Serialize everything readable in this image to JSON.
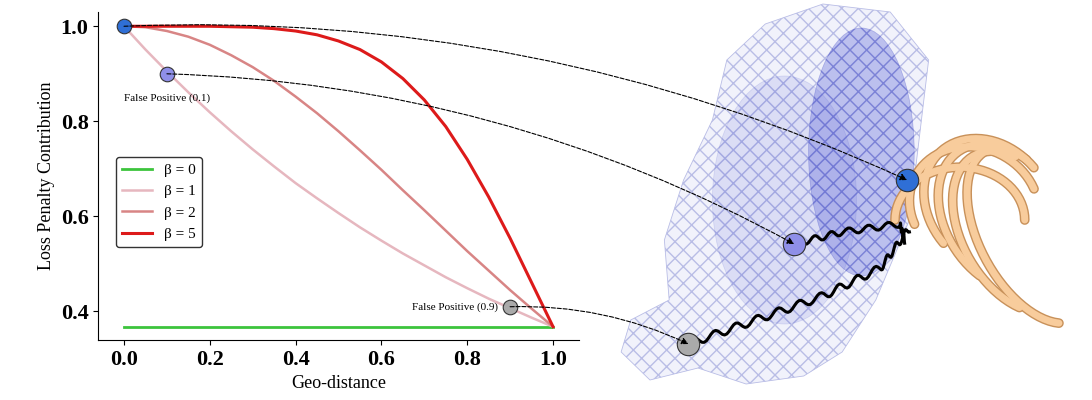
{
  "chart_data": {
    "type": "line",
    "x_label": "Geo-distance",
    "y_label": "Loss Penalty Contribution",
    "x": [
      0.0,
      0.05,
      0.1,
      0.15,
      0.2,
      0.25,
      0.3,
      0.35,
      0.4,
      0.45,
      0.5,
      0.55,
      0.6,
      0.65,
      0.7,
      0.75,
      0.8,
      0.85,
      0.9,
      0.95,
      1.0
    ],
    "series": [
      {
        "name": "β = 0",
        "color": "#3cc43c",
        "values": [
          0.368,
          0.368,
          0.368,
          0.368,
          0.368,
          0.368,
          0.368,
          0.368,
          0.368,
          0.368,
          0.368,
          0.368,
          0.368,
          0.368,
          0.368,
          0.368,
          0.368,
          0.368,
          0.368,
          0.368,
          0.368
        ]
      },
      {
        "name": "β = 1",
        "color": "#e6b7bf",
        "values": [
          1.0,
          0.951,
          0.905,
          0.861,
          0.819,
          0.779,
          0.741,
          0.705,
          0.67,
          0.638,
          0.607,
          0.577,
          0.549,
          0.522,
          0.497,
          0.472,
          0.449,
          0.427,
          0.407,
          0.387,
          0.368
        ]
      },
      {
        "name": "β = 2",
        "color": "#d88585",
        "values": [
          1.0,
          0.998,
          0.99,
          0.978,
          0.961,
          0.939,
          0.914,
          0.885,
          0.852,
          0.817,
          0.779,
          0.739,
          0.698,
          0.655,
          0.613,
          0.57,
          0.527,
          0.486,
          0.445,
          0.406,
          0.368
        ]
      },
      {
        "name": "β = 5",
        "color": "#dd1a1a",
        "values": [
          1.0,
          1.0,
          1.0,
          1.0,
          1.0,
          0.999,
          0.998,
          0.995,
          0.99,
          0.982,
          0.969,
          0.951,
          0.925,
          0.89,
          0.845,
          0.789,
          0.72,
          0.641,
          0.554,
          0.461,
          0.368
        ]
      }
    ],
    "xlim": [
      -0.06,
      1.06
    ],
    "ylim": [
      0.34,
      1.03
    ],
    "xticks": [
      {
        "value": 0.0,
        "label": "0.0"
      },
      {
        "value": 0.2,
        "label": "0.2"
      },
      {
        "value": 0.4,
        "label": "0.4"
      },
      {
        "value": 0.6,
        "label": "0.6"
      },
      {
        "value": 0.8,
        "label": "0.8"
      },
      {
        "value": 1.0,
        "label": "1.0"
      }
    ],
    "yticks": [
      {
        "value": 0.4,
        "label": "0.4"
      },
      {
        "value": 0.6,
        "label": "0.6"
      },
      {
        "value": 0.8,
        "label": "0.8"
      },
      {
        "value": 1.0,
        "label": "1.0"
      }
    ],
    "legend": "center left",
    "points": [
      {
        "x": 0.0,
        "y": 1.0,
        "color": "#2f6fd6"
      },
      {
        "x": 0.1,
        "y": 0.9,
        "color": "#8f8fe8",
        "label": "False Positive (0.1)"
      },
      {
        "x": 0.9,
        "y": 0.41,
        "color": "#aaaaaa",
        "label": "False Positive (0.9)"
      }
    ]
  }
}
